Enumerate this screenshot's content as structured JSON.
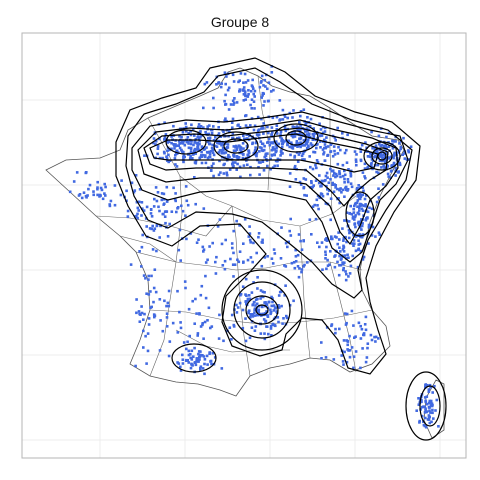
{
  "title": "Groupe 8",
  "colors": {
    "points": "#4169e1",
    "contours": "#000000",
    "regions": "#555555",
    "grid": "#ececec",
    "frame": "#b5b5b5"
  },
  "legend": null
}
